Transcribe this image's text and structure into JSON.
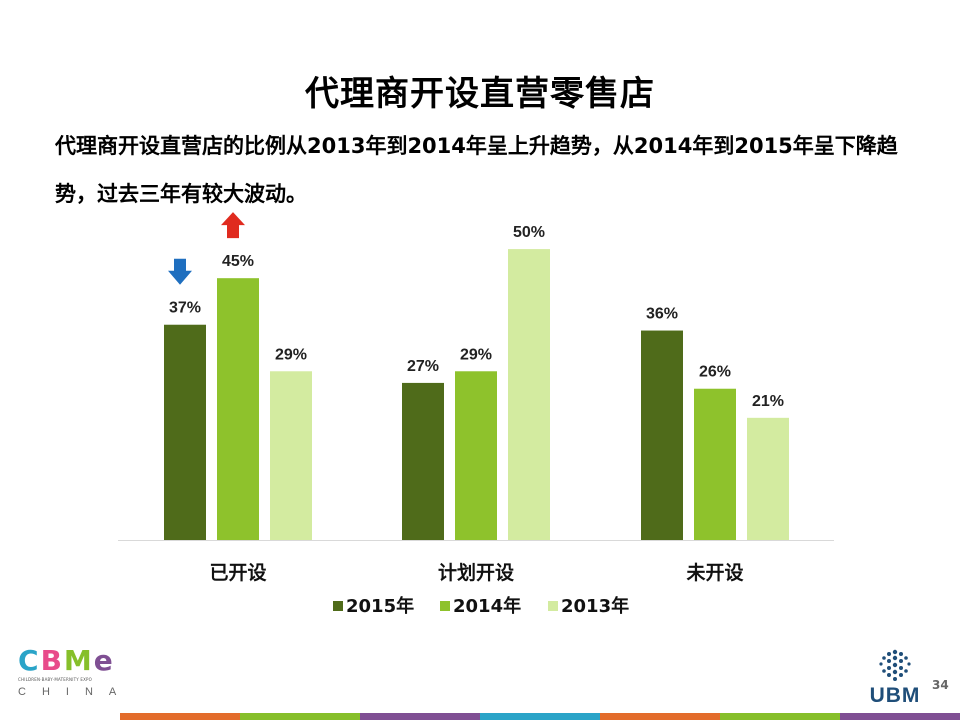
{
  "slide": {
    "title": "代理商开设直营零售店",
    "subtitle": "代理商开设直营店的比例从2013年到2014年呈上升趋势，从2014年到2015年呈下降趋势，过去三年有较大波动。",
    "page_number": "34"
  },
  "logos": {
    "left_letters": [
      "C",
      "B",
      "M",
      "e"
    ],
    "left_tagline": "CHILDREN·BABY·MATERNITY EXPO",
    "left_sub": "CHINA",
    "right_text": "UBM"
  },
  "chart_data": {
    "type": "bar",
    "categories": [
      "已开设",
      "计划开设",
      "未开设"
    ],
    "series": [
      {
        "name": "2015年",
        "values": [
          37,
          27,
          36
        ],
        "color": "#4f6b1a"
      },
      {
        "name": "2014年",
        "values": [
          45,
          29,
          26
        ],
        "color": "#8ec22c"
      },
      {
        "name": "2013年",
        "values": [
          29,
          50,
          21
        ],
        "color": "#d3eba0"
      }
    ],
    "value_suffix": "%",
    "ylim": [
      0,
      55
    ],
    "legend_position": "bottom",
    "grid": false,
    "annotations": [
      {
        "category": "已开设",
        "series": "2015年",
        "symbol": "down-arrow",
        "color": "#1f6fbf"
      },
      {
        "category": "已开设",
        "series": "2014年",
        "symbol": "up-arrow",
        "color": "#e02b1f"
      }
    ]
  },
  "colors": {
    "bottom_bar": [
      "#e36c2b",
      "#86bf2a",
      "#7f4f93",
      "#2aa4c8",
      "#e36c2b",
      "#86bf2a",
      "#7f4f93"
    ]
  }
}
